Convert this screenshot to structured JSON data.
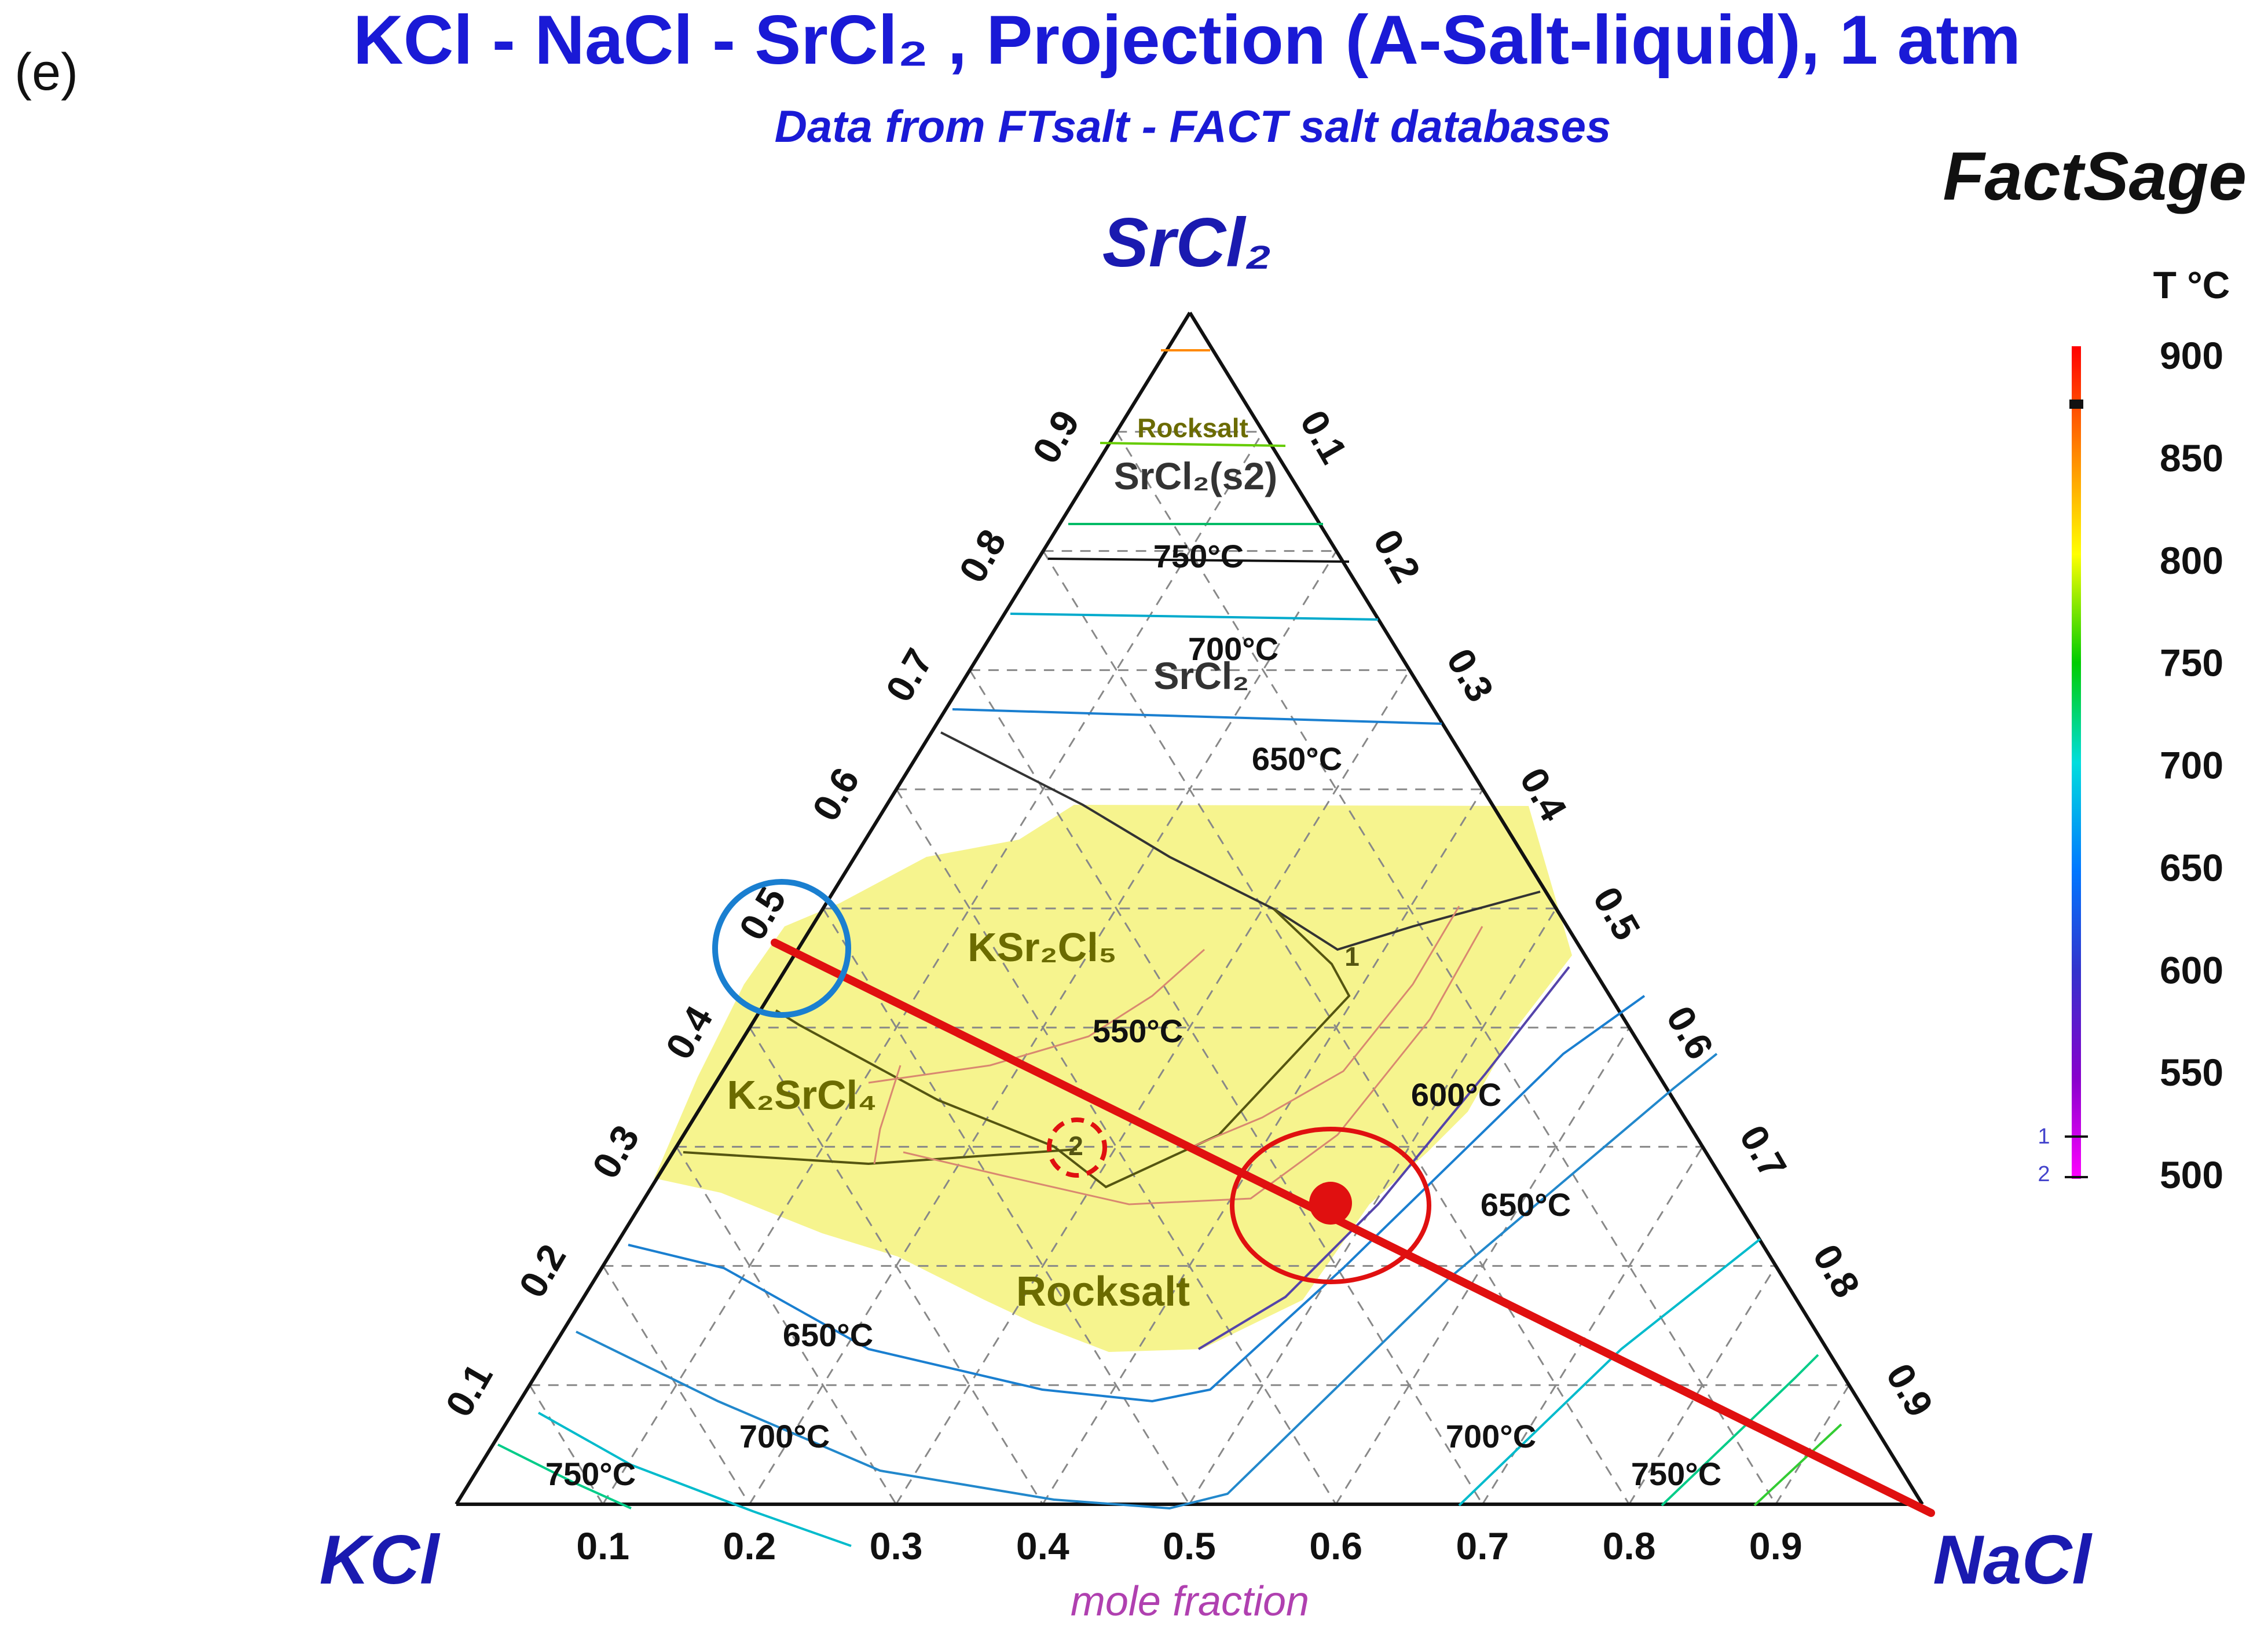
{
  "panel_label": "(e)",
  "header": {
    "title": "KCl - NaCl - SrCl₂ , Projection (A-Salt-liquid), 1 atm",
    "subtitle": "Data from FTsalt - FACT salt databases",
    "brand": "FactSage"
  },
  "corners": {
    "top": "SrCl₂",
    "left": "KCl",
    "right": "NaCl"
  },
  "axis_caption": "mole fraction",
  "chart_data": {
    "type": "ternary",
    "components": [
      "KCl",
      "NaCl",
      "SrCl₂"
    ],
    "ticks": {
      "bottom": [
        "0.1",
        "0.2",
        "0.3",
        "0.4",
        "0.5",
        "0.6",
        "0.7",
        "0.8",
        "0.9"
      ],
      "left": [
        "0.1",
        "0.2",
        "0.3",
        "0.4",
        "0.5",
        "0.6",
        "0.7",
        "0.8",
        "0.9"
      ],
      "right": [
        "0.1",
        "0.2",
        "0.3",
        "0.4",
        "0.5",
        "0.6",
        "0.7",
        "0.8",
        "0.9"
      ]
    },
    "grid": true,
    "phase_fields": [
      "Rocksalt",
      "SrCl₂(s2)",
      "SrCl₂",
      "KSr₂Cl₅",
      "K₂SrCl₄",
      "Rocksalt"
    ],
    "isotherm_labels": [
      "750°C",
      "700°C",
      "650°C",
      "550°C",
      "600°C",
      "650°C",
      "650°C",
      "700°C",
      "700°C",
      "750°C",
      "750°C"
    ],
    "special_points": [
      "1",
      "2"
    ],
    "colorbar": {
      "title": "T °C",
      "labels": [
        "900",
        "850",
        "800",
        "750",
        "700",
        "650",
        "600",
        "550",
        "500"
      ],
      "range": [
        500,
        900
      ],
      "colors": [
        "#ff0000",
        "#ff8800",
        "#ffff00",
        "#00cc00",
        "#00dddd",
        "#0077ff",
        "#3333cc",
        "#8800cc",
        "#ff00ff"
      ]
    }
  },
  "colors": {
    "title": "#1a1ad6",
    "highlight_region": "#f4f27a",
    "red_line": "#e01010",
    "blue_circle": "#1a7fd0"
  }
}
